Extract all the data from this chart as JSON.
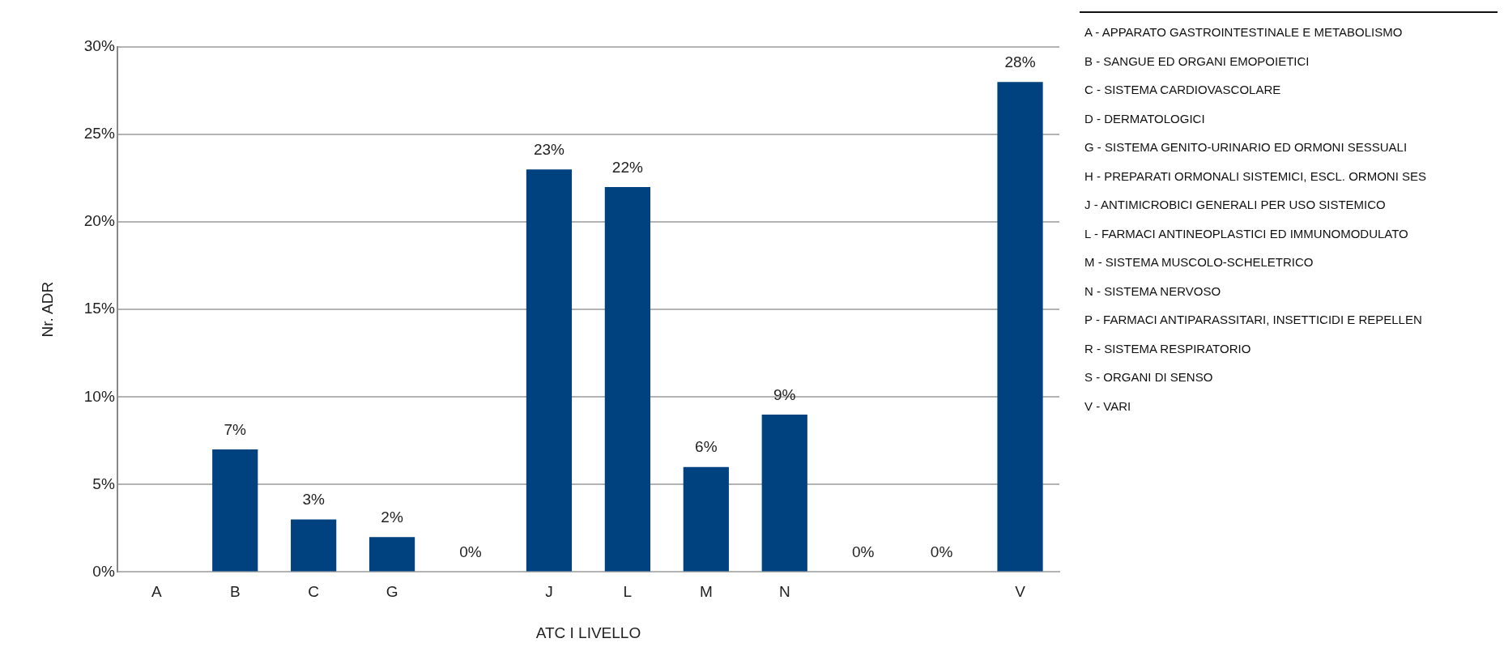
{
  "chart_data": {
    "type": "bar",
    "xlabel": "ATC I LIVELLO",
    "ylabel": "Nr. ADR",
    "categories": [
      "A",
      "B",
      "C",
      "G",
      null,
      "J",
      "L",
      "M",
      "N",
      null,
      null,
      "V"
    ],
    "values": [
      0,
      7,
      3,
      2,
      0,
      23,
      22,
      6,
      9,
      0,
      0,
      28
    ],
    "value_labels": [
      null,
      "7%",
      "3%",
      "2%",
      "0%",
      "23%",
      "22%",
      "6%",
      "9%",
      "0%",
      "0%",
      "28%"
    ],
    "color": "#00427f",
    "ylim": [
      0,
      30
    ],
    "yticks": [
      {
        "value": 0,
        "label": "0%"
      },
      {
        "value": 5,
        "label": "5%"
      },
      {
        "value": 10,
        "label": "10%"
      },
      {
        "value": 15,
        "label": "15%"
      },
      {
        "value": 20,
        "label": "20%"
      },
      {
        "value": 25,
        "label": "25%"
      },
      {
        "value": 30,
        "label": "30%"
      }
    ],
    "grid": "y",
    "legend": false,
    "annotations": [
      "A - APPARATO GASTROINTESTINALE E METABOLISMO",
      "B - SANGUE ED ORGANI EMOPOIETICI",
      "C - SISTEMA CARDIOVASCOLARE",
      "D - DERMATOLOGICI",
      "G - SISTEMA GENITO-URINARIO ED ORMONI SESSUALI",
      "H - PREPARATI ORMONALI SISTEMICI, ESCL. ORMONI SES",
      "J - ANTIMICROBICI GENERALI PER USO SISTEMICO",
      "L - FARMACI ANTINEOPLASTICI ED IMMUNOMODULATO",
      "M - SISTEMA MUSCOLO-SCHELETRICO",
      "N - SISTEMA NERVOSO",
      "P - FARMACI ANTIPARASSITARI, INSETTICIDI E REPELLEN",
      "R - SISTEMA RESPIRATORIO",
      "S - ORGANI DI SENSO",
      "V - VARI"
    ]
  }
}
